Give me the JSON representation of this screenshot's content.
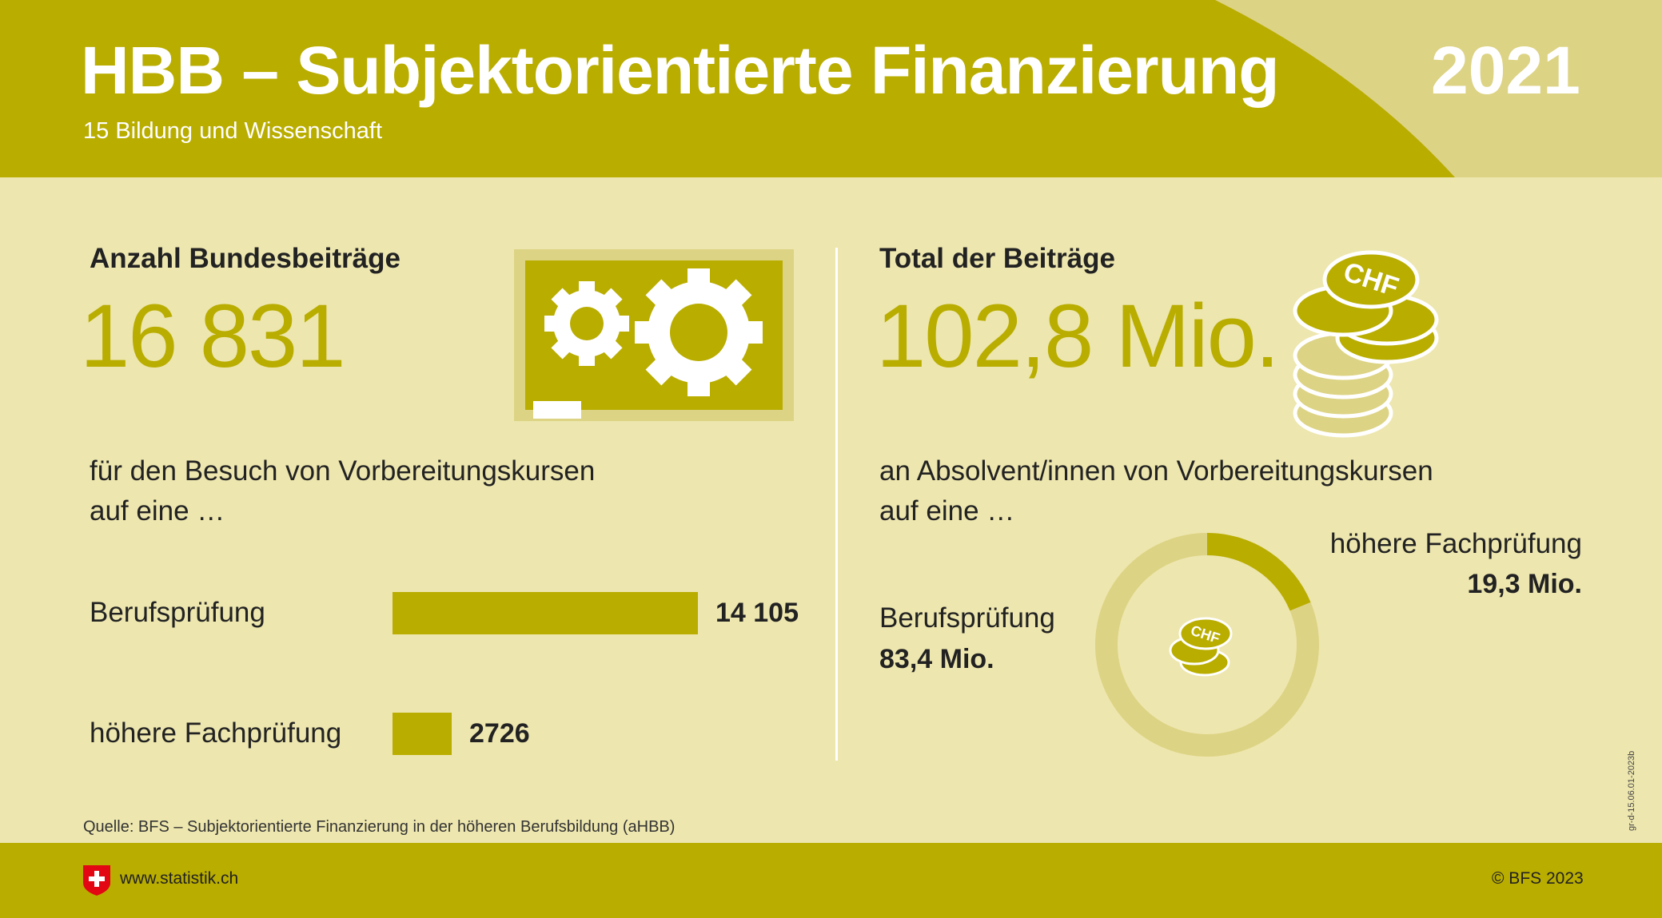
{
  "header": {
    "title": "HBB – Subjektorientierte Finanzierung",
    "subtitle": "15 Bildung und Wissenschaft",
    "year": "2021"
  },
  "left": {
    "label": "Anzahl Bundesbeiträge",
    "big_number": "16 831",
    "icon": "gears-icon",
    "description_line1": "für den Besuch von Vorbereitungskursen",
    "description_line2": "auf eine …"
  },
  "right": {
    "label": "Total der Beiträge",
    "big_number": "102,8 Mio.",
    "icon": "chf-coins-icon",
    "description_line1": "an Absolvent/innen von Vorbereitungskursen",
    "description_line2": "auf eine …"
  },
  "chart_data": [
    {
      "type": "bar",
      "categories": [
        "Berufsprüfung",
        "höhere Fachprüfung"
      ],
      "values": [
        14105,
        2726
      ],
      "value_labels": [
        "14 105",
        "2726"
      ],
      "orientation": "horizontal"
    },
    {
      "type": "pie",
      "variant": "donut",
      "categories": [
        "Berufsprüfung",
        "höhere Fachprüfung"
      ],
      "values": [
        83.4,
        19.3
      ],
      "value_labels": [
        "83,4 Mio.",
        "19,3 Mio."
      ],
      "colors": [
        "#ddd384",
        "#b9ad00"
      ]
    }
  ],
  "footer": {
    "source": "Quelle: BFS – Subjektorientierte Finanzierung in der höheren Berufsbildung (aHBB)",
    "website": "www.statistik.ch",
    "copyright": "© BFS 2023",
    "code": "gr-d-15.06.01-2023b"
  },
  "colors": {
    "primary": "#b9ad00",
    "light": "#ddd384",
    "background": "#ede6ae",
    "swiss_red": "#e30613"
  }
}
